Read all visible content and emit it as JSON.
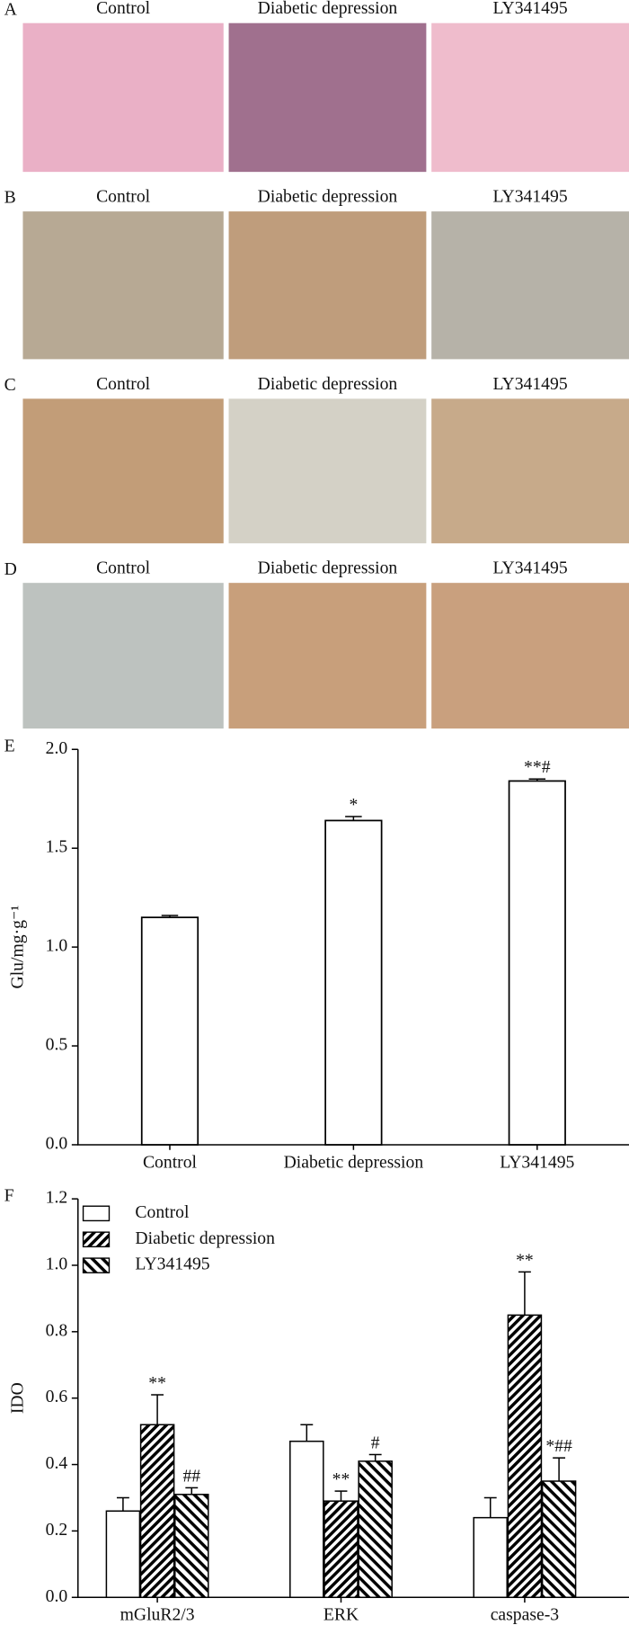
{
  "panels": [
    {
      "label": "A",
      "titles": [
        "Control",
        "Diabetic depression",
        "LY341495"
      ]
    },
    {
      "label": "B",
      "titles": [
        "Control",
        "Diabetic depression",
        "LY341495"
      ]
    },
    {
      "label": "C",
      "titles": [
        "Control",
        "Diabetic depression",
        "LY341495"
      ]
    },
    {
      "label": "D",
      "titles": [
        "Control",
        "Diabetic depression",
        "LY341495"
      ]
    }
  ],
  "chart_data": [
    {
      "type": "bar",
      "panel_label": "E",
      "ylabel": "Glu/mg·g⁻¹",
      "categories": [
        "Control",
        "Diabetic depression",
        "LY341495"
      ],
      "values": [
        1.15,
        1.64,
        1.84
      ],
      "errors": [
        0.01,
        0.02,
        0.01
      ],
      "annotations": [
        null,
        "*",
        "**#"
      ],
      "color": "#ffffff",
      "ylim": [
        0,
        2
      ],
      "yticks": [
        {
          "value": 0,
          "label": "0.0"
        },
        {
          "value": 0.5,
          "label": "0.5"
        },
        {
          "value": 1,
          "label": "1.0"
        },
        {
          "value": 1.5,
          "label": "1.5"
        },
        {
          "value": 2,
          "label": "2.0"
        }
      ]
    },
    {
      "type": "grouped-bar",
      "panel_label": "F",
      "ylabel": "IDO",
      "legend": "upper left",
      "categories": [
        "mGluR2/3",
        "ERK",
        "caspase-3"
      ],
      "series": [
        {
          "name": "Control",
          "color": "#ffffff",
          "hatch": "none",
          "values": [
            0.26,
            0.47,
            0.24
          ],
          "errors": [
            0.04,
            0.05,
            0.06
          ],
          "annotations": [
            null,
            null,
            null
          ]
        },
        {
          "name": "Diabetic depression",
          "color": "#ffffff",
          "hatch": "back",
          "values": [
            0.52,
            0.29,
            0.85
          ],
          "errors": [
            0.09,
            0.03,
            0.13
          ],
          "annotations": [
            "**",
            "**",
            "**"
          ]
        },
        {
          "name": "LY341495",
          "color": "#ffffff",
          "hatch": "forward",
          "values": [
            0.31,
            0.41,
            0.35
          ],
          "errors": [
            0.02,
            0.02,
            0.07
          ],
          "annotations": [
            "##",
            "#",
            "*##"
          ]
        }
      ],
      "ylim": [
        0,
        1.2
      ],
      "yticks": [
        {
          "value": 0,
          "label": "0.0"
        },
        {
          "value": 0.2,
          "label": "0.2"
        },
        {
          "value": 0.4,
          "label": "0.4"
        },
        {
          "value": 0.6,
          "label": "0.6"
        },
        {
          "value": 0.8,
          "label": "0.8"
        },
        {
          "value": 1,
          "label": "1.0"
        },
        {
          "value": 1.2,
          "label": "1.2"
        }
      ]
    }
  ]
}
